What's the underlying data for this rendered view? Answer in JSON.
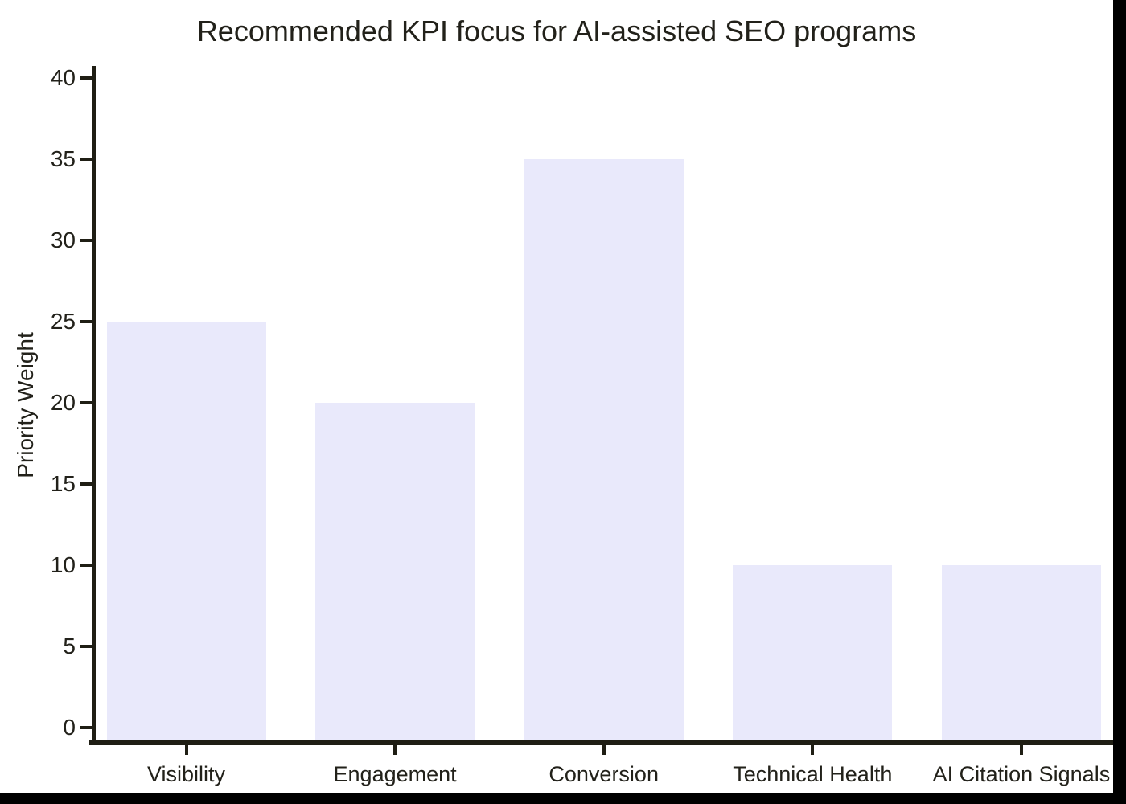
{
  "page": {
    "background_color": "#000000",
    "canvas_color": "#ffffff"
  },
  "chart_data": {
    "type": "bar",
    "title": "Recommended KPI focus for AI-assisted SEO programs",
    "xlabel": "",
    "ylabel": "Priority Weight",
    "categories": [
      "Visibility",
      "Engagement",
      "Conversion",
      "Technical Health",
      "AI Citation Signals"
    ],
    "values": [
      25,
      20,
      35,
      10,
      10
    ],
    "yticks": [
      0,
      5,
      10,
      15,
      20,
      25,
      30,
      35,
      40
    ],
    "ylim": [
      0,
      40
    ],
    "grid": false,
    "legend_position": "none",
    "bar_color": "#e9e9fb",
    "axis_color": "#1f1e14",
    "text_color": "#22211a"
  }
}
